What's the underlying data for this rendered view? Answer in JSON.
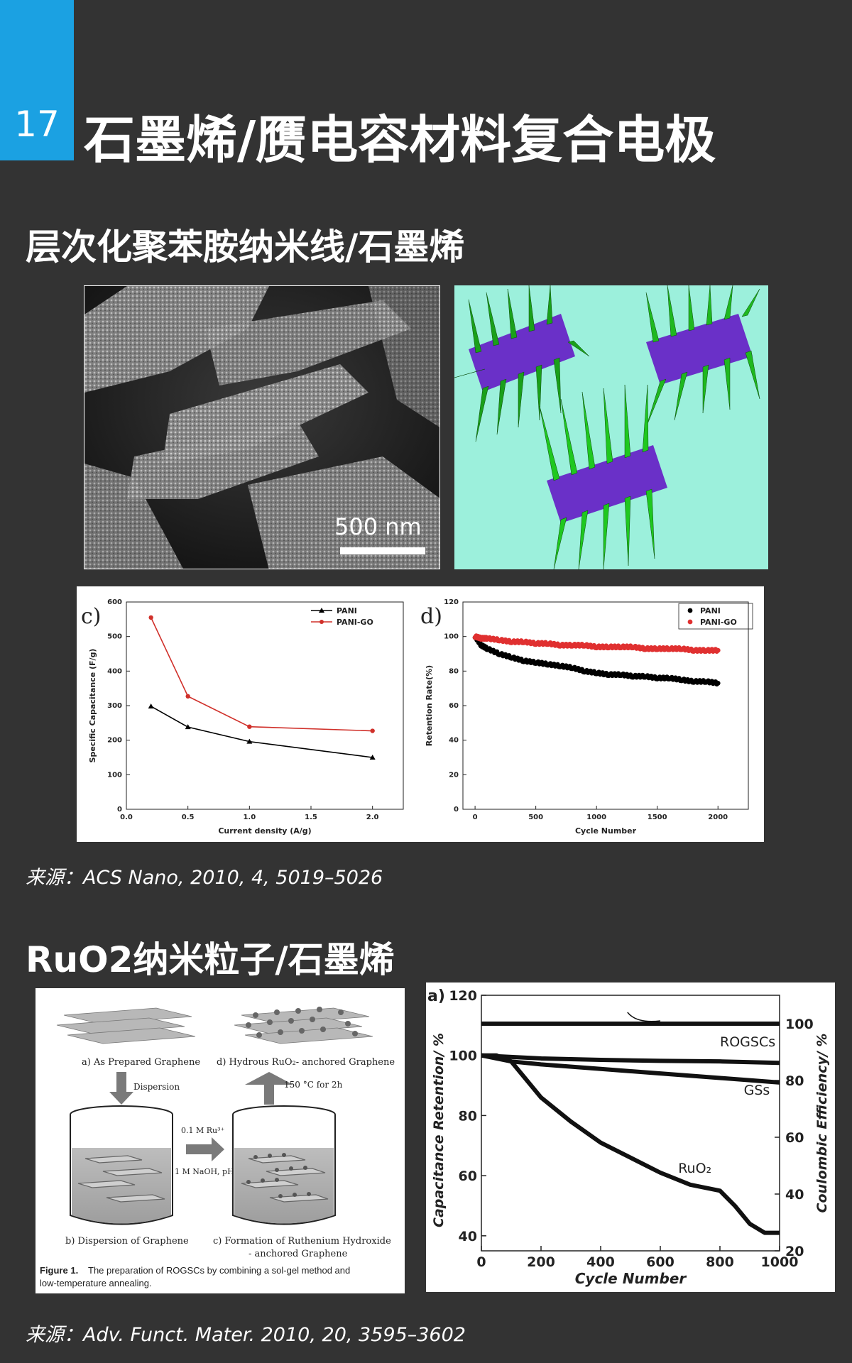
{
  "slide": {
    "number": "17",
    "title": "石墨烯/赝电容材料复合电极"
  },
  "section1": {
    "heading": "层次化聚苯胺纳米线/石墨烯",
    "sem_scale_label": "500 nm",
    "source": "来源：ACS Nano, 2010, 4, 5019–5026"
  },
  "section2": {
    "heading": "RuO2纳米粒子/石墨烯",
    "source": "来源：Adv. Funct. Mater. 2010, 20, 3595–3602"
  },
  "schematic": {
    "step_a": "a) As Prepared Graphene",
    "step_b": "b) Dispersion of Graphene",
    "step_c_line1": "c) Formation of Ruthenium Hydroxide",
    "step_c_line2": "- anchored Graphene",
    "step_d": "d) Hydrous RuO₂- anchored Graphene",
    "arrow_down": "Dispersion",
    "arrow_up": "150 °C for 2h",
    "arrow_right_line1": "0.1 M Ru³⁺",
    "arrow_right_line2": "1 M NaOH, pH=7",
    "caption_label": "Figure 1.",
    "caption_line1": "The preparation of ROGSCs by combining a sol-gel method and",
    "caption_line2": "low-temperature annealing."
  },
  "chart_data": [
    {
      "type": "line",
      "panel_label": "c)",
      "xlabel": "Current density (A/g)",
      "ylabel": "Specific Capacitance (F/g)",
      "xlim": [
        0,
        2.25
      ],
      "ylim": [
        0,
        600
      ],
      "xticks": [
        "0.0",
        "0.5",
        "1.0",
        "1.5",
        "2.0"
      ],
      "yticks": [
        "0",
        "100",
        "200",
        "300",
        "400",
        "500",
        "600"
      ],
      "legend_position": "top-right",
      "series": [
        {
          "name": "PANI",
          "color": "#000000",
          "marker": "triangle",
          "x": [
            0.2,
            0.5,
            1.0,
            2.0
          ],
          "y": [
            298,
            238,
            196,
            150
          ]
        },
        {
          "name": "PANI-GO",
          "color": "#d0302a",
          "marker": "circle",
          "x": [
            0.2,
            0.5,
            1.0,
            2.0
          ],
          "y": [
            555,
            327,
            239,
            227
          ]
        }
      ]
    },
    {
      "type": "scatter",
      "panel_label": "d)",
      "xlabel": "Cycle Number",
      "ylabel": "Retention Rate(%)",
      "xlim": [
        -100,
        2250
      ],
      "ylim": [
        0,
        120
      ],
      "xticks": [
        "0",
        "500",
        "1000",
        "1500",
        "2000"
      ],
      "yticks": [
        "0",
        "20",
        "40",
        "60",
        "80",
        "100",
        "120"
      ],
      "legend_position": "top-right",
      "series": [
        {
          "name": "PANI",
          "color": "#000000",
          "x": [
            0,
            50,
            100,
            200,
            300,
            400,
            500,
            600,
            700,
            800,
            900,
            1000,
            1100,
            1200,
            1300,
            1400,
            1500,
            1600,
            1700,
            1800,
            1900,
            2000
          ],
          "y": [
            100,
            95,
            93,
            90,
            88,
            86,
            85,
            84,
            83,
            82,
            80,
            79,
            78,
            78,
            77,
            77,
            76,
            76,
            75,
            74,
            74,
            73
          ]
        },
        {
          "name": "PANI-GO",
          "color": "#e03030",
          "x": [
            0,
            50,
            100,
            200,
            300,
            400,
            500,
            600,
            700,
            800,
            900,
            1000,
            1100,
            1200,
            1300,
            1400,
            1500,
            1600,
            1700,
            1800,
            1900,
            2000
          ],
          "y": [
            100,
            99,
            99,
            98,
            97,
            97,
            96,
            96,
            95,
            95,
            95,
            94,
            94,
            94,
            94,
            93,
            93,
            93,
            93,
            92,
            92,
            92
          ]
        }
      ]
    },
    {
      "type": "line",
      "panel_label": "a)",
      "xlabel": "Cycle Number",
      "ylabel": "Capacitance Retention/ %",
      "y2label": "Coulombic Efficiency/ %",
      "xlim": [
        0,
        1000
      ],
      "ylim": [
        35,
        120
      ],
      "y2lim": [
        20,
        110
      ],
      "xticks": [
        "0",
        "200",
        "400",
        "600",
        "800",
        "1000"
      ],
      "yticks": [
        "40",
        "60",
        "80",
        "100",
        "120"
      ],
      "y2ticks": [
        "20",
        "40",
        "60",
        "80",
        "100"
      ],
      "series": [
        {
          "name": "ROGSCs",
          "x": [
            0,
            100,
            200,
            400,
            600,
            800,
            1000
          ],
          "y": [
            100,
            99.5,
            99,
            98.5,
            98.2,
            98,
            97.5
          ]
        },
        {
          "name": "GSs",
          "x": [
            0,
            100,
            200,
            400,
            600,
            800,
            1000
          ],
          "y": [
            100,
            98,
            97,
            95.5,
            94,
            92.5,
            91
          ]
        },
        {
          "name": "RuO₂",
          "x": [
            0,
            50,
            100,
            150,
            200,
            300,
            400,
            500,
            600,
            700,
            800,
            850,
            900,
            950,
            1000
          ],
          "y": [
            100,
            100,
            98,
            92,
            86,
            78,
            71,
            66,
            61,
            57,
            55,
            50,
            44,
            41,
            41
          ]
        },
        {
          "name": "",
          "axis": "right",
          "x": [
            0,
            200,
            400,
            600,
            800,
            1000
          ],
          "y": [
            100,
            100,
            100,
            100,
            100,
            100
          ]
        }
      ]
    }
  ]
}
